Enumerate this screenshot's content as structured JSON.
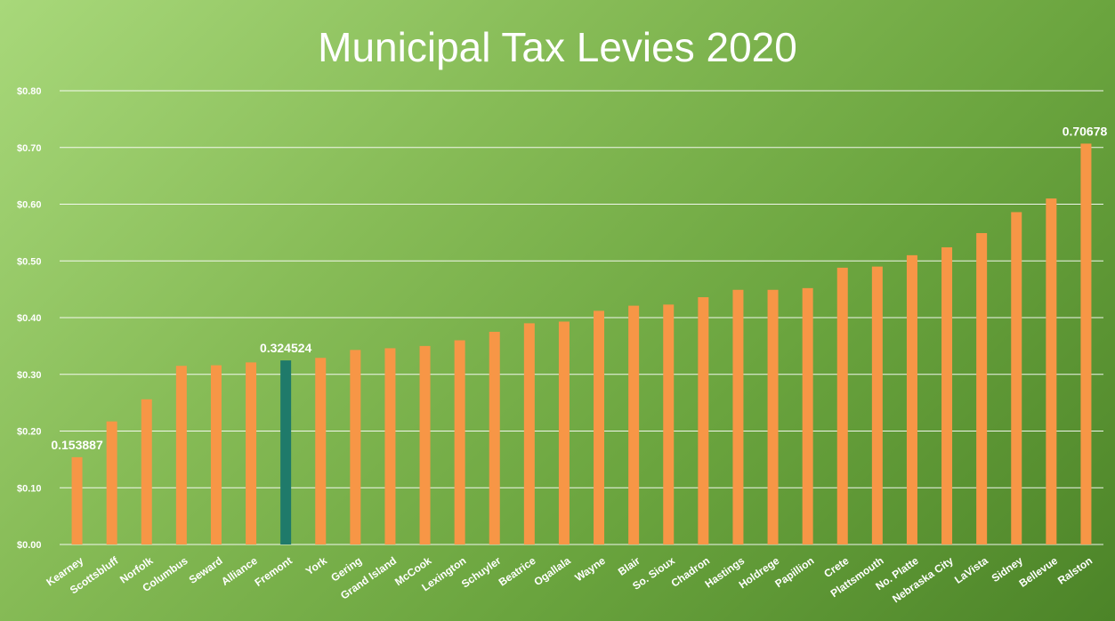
{
  "chart_data": {
    "type": "bar",
    "title": "Municipal Tax Levies 2020",
    "xlabel": "",
    "ylabel": "",
    "ylim": [
      0,
      0.8
    ],
    "yticks": [
      0,
      0.1,
      0.2,
      0.3,
      0.4,
      0.5,
      0.6,
      0.7,
      0.8
    ],
    "ytick_labels": [
      "$0.00",
      "$0.10",
      "$0.20",
      "$0.30",
      "$0.40",
      "$0.50",
      "$0.60",
      "$0.70",
      "$0.80"
    ],
    "grid": true,
    "categories": [
      "Kearney",
      "Scottsbluff",
      "Norfolk",
      "Columbus",
      "Seward",
      "Alliance",
      "Fremont",
      "York",
      "Gering",
      "Grand Island",
      "McCook",
      "Lexington",
      "Schuyler",
      "Beatrice",
      "Ogallala",
      "Wayne",
      "Blair",
      "So. Sioux",
      "Chadron",
      "Hastings",
      "Holdrege",
      "Papillion",
      "Crete",
      "Plattsmouth",
      "No. Platte",
      "Nebraska City",
      "LaVista",
      "Sidney",
      "Bellevue",
      "Ralston"
    ],
    "values": [
      0.153887,
      0.217,
      0.256,
      0.315,
      0.316,
      0.321,
      0.324524,
      0.329,
      0.343,
      0.346,
      0.35,
      0.36,
      0.375,
      0.39,
      0.393,
      0.412,
      0.421,
      0.423,
      0.436,
      0.449,
      0.449,
      0.452,
      0.488,
      0.49,
      0.51,
      0.524,
      0.549,
      0.586,
      0.61,
      0.70678
    ],
    "highlight": "Fremont",
    "data_labels": [
      {
        "category": "Kearney",
        "text": "0.153887"
      },
      {
        "category": "Fremont",
        "text": "0.324524"
      },
      {
        "category": "Ralston",
        "text": "0.70678"
      }
    ],
    "colors": {
      "bar": "#f79646",
      "highlight_bar": "#1f7a6a",
      "gridline": "#ffffff",
      "text": "#ffffff"
    }
  }
}
